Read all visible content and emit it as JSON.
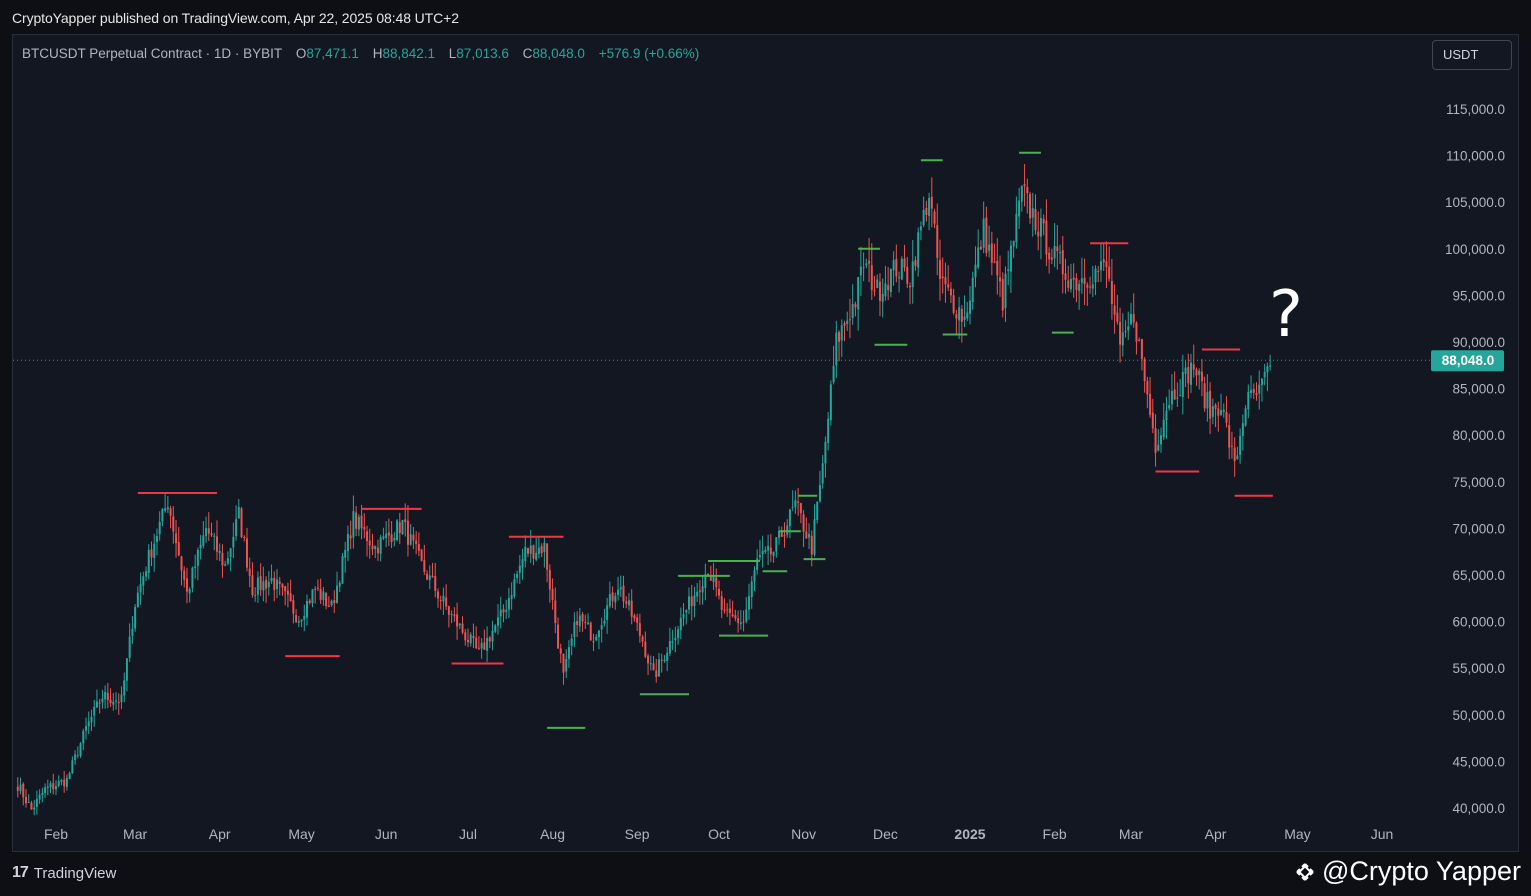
{
  "header": {
    "published": "CryptoYapper published on TradingView.com, Apr 22, 2025 08:48 UTC+2"
  },
  "legend": {
    "symbol": "BTCUSDT Perpetual Contract · 1D · BYBIT",
    "o_label": "O",
    "o_value": "87,471.1",
    "h_label": "H",
    "h_value": "88,842.1",
    "l_label": "L",
    "l_value": "87,013.6",
    "c_label": "C",
    "c_value": "88,048.0",
    "change": "+576.9 (+0.66%)"
  },
  "currency_button": "USDT",
  "price_label": "88,048.0",
  "annotation": "?",
  "footer": {
    "brand": "TradingView",
    "brand_mark": "17",
    "watermark": "@Crypto Yapper"
  },
  "colors": {
    "up": "#26a69a",
    "down": "#ef5350",
    "support_line": "#4caf50",
    "resistance_line": "#f23645",
    "background": "#131722",
    "axis_text": "#b2b5be"
  },
  "chart_data": {
    "type": "candlestick",
    "symbol": "BTCUSDT",
    "interval": "1D",
    "y_ticks": [
      "115,000.0",
      "110,000.0",
      "105,000.0",
      "100,000.0",
      "95,000.0",
      "90,000.0",
      "85,000.0",
      "80,000.0",
      "75,000.0",
      "70,000.0",
      "65,000.0",
      "60,000.0",
      "55,000.0",
      "50,000.0",
      "45,000.0",
      "40,000.0"
    ],
    "ylim": [
      39000,
      118000
    ],
    "x_ticks": [
      "Feb",
      "Mar",
      "Apr",
      "May",
      "Jun",
      "Jul",
      "Aug",
      "Sep",
      "Oct",
      "Nov",
      "Dec",
      "2025",
      "Feb",
      "Mar",
      "Apr",
      "May",
      "Jun"
    ],
    "x_tick_dates": [
      "2024-02-01",
      "2024-03-01",
      "2024-04-01",
      "2024-05-01",
      "2024-06-01",
      "2024-07-01",
      "2024-08-01",
      "2024-09-01",
      "2024-10-01",
      "2024-11-01",
      "2024-12-01",
      "2025-01-01",
      "2025-02-01",
      "2025-03-01",
      "2025-04-01",
      "2025-05-01",
      "2025-06-01"
    ],
    "last_price": 88048.0,
    "close_path": [
      [
        "2024-01-18",
        42500
      ],
      [
        "2024-01-23",
        39800
      ],
      [
        "2024-01-28",
        42000
      ],
      [
        "2024-02-05",
        43000
      ],
      [
        "2024-02-12",
        48500
      ],
      [
        "2024-02-18",
        52000
      ],
      [
        "2024-02-25",
        51500
      ],
      [
        "2024-03-01",
        62000
      ],
      [
        "2024-03-05",
        66000
      ],
      [
        "2024-03-13",
        73000
      ],
      [
        "2024-03-20",
        63000
      ],
      [
        "2024-03-27",
        70000
      ],
      [
        "2024-04-03",
        66000
      ],
      [
        "2024-04-08",
        71500
      ],
      [
        "2024-04-13",
        63500
      ],
      [
        "2024-04-20",
        64500
      ],
      [
        "2024-04-30",
        60500
      ],
      [
        "2024-05-06",
        63500
      ],
      [
        "2024-05-12",
        61500
      ],
      [
        "2024-05-20",
        71000
      ],
      [
        "2024-05-28",
        68000
      ],
      [
        "2024-06-07",
        70500
      ],
      [
        "2024-06-14",
        66000
      ],
      [
        "2024-06-24",
        61000
      ],
      [
        "2024-07-05",
        56500
      ],
      [
        "2024-07-14",
        61000
      ],
      [
        "2024-07-22",
        67500
      ],
      [
        "2024-07-29",
        68000
      ],
      [
        "2024-08-05",
        54000
      ],
      [
        "2024-08-10",
        60500
      ],
      [
        "2024-08-16",
        58500
      ],
      [
        "2024-08-25",
        64000
      ],
      [
        "2024-09-03",
        58000
      ],
      [
        "2024-09-07",
        54000
      ],
      [
        "2024-09-15",
        59000
      ],
      [
        "2024-09-27",
        65800
      ],
      [
        "2024-10-03",
        60500
      ],
      [
        "2024-10-10",
        60000
      ],
      [
        "2024-10-15",
        66500
      ],
      [
        "2024-10-21",
        67500
      ],
      [
        "2024-10-29",
        72500
      ],
      [
        "2024-11-04",
        68000
      ],
      [
        "2024-11-08",
        76500
      ],
      [
        "2024-11-13",
        90000
      ],
      [
        "2024-11-20",
        94500
      ],
      [
        "2024-11-23",
        98500
      ],
      [
        "2024-11-28",
        95500
      ],
      [
        "2024-12-05",
        98000
      ],
      [
        "2024-12-10",
        97000
      ],
      [
        "2024-12-17",
        106000
      ],
      [
        "2024-12-21",
        96500
      ],
      [
        "2024-12-30",
        92500
      ],
      [
        "2025-01-06",
        102000
      ],
      [
        "2025-01-13",
        94500
      ],
      [
        "2025-01-20",
        106000
      ],
      [
        "2025-01-26",
        102500
      ],
      [
        "2025-02-01",
        99000
      ],
      [
        "2025-02-08",
        96500
      ],
      [
        "2025-02-20",
        98000
      ],
      [
        "2025-02-25",
        89000
      ],
      [
        "2025-03-02",
        93000
      ],
      [
        "2025-03-10",
        79000
      ],
      [
        "2025-03-15",
        84000
      ],
      [
        "2025-03-24",
        87500
      ],
      [
        "2025-03-30",
        82500
      ],
      [
        "2025-04-03",
        83500
      ],
      [
        "2025-04-08",
        76500
      ],
      [
        "2025-04-12",
        83500
      ],
      [
        "2025-04-17",
        84500
      ],
      [
        "2025-04-21",
        87471
      ]
    ],
    "support_levels": [
      {
        "start": "2024-09-16",
        "end": "2024-10-05",
        "price": 64900
      },
      {
        "start": "2024-07-30",
        "end": "2024-08-13",
        "price": 48600
      },
      {
        "start": "2024-09-02",
        "end": "2024-09-20",
        "price": 52200
      },
      {
        "start": "2024-09-27",
        "end": "2024-10-16",
        "price": 66500
      },
      {
        "start": "2024-10-01",
        "end": "2024-10-19",
        "price": 58500
      },
      {
        "start": "2024-10-17",
        "end": "2024-10-26",
        "price": 65400
      },
      {
        "start": "2024-10-23",
        "end": "2024-10-31",
        "price": 69700
      },
      {
        "start": "2024-10-30",
        "end": "2024-11-06",
        "price": 73500
      },
      {
        "start": "2024-11-01",
        "end": "2024-11-09",
        "price": 66700
      },
      {
        "start": "2024-11-21",
        "end": "2024-11-29",
        "price": 100000
      },
      {
        "start": "2024-11-27",
        "end": "2024-12-09",
        "price": 89700
      },
      {
        "start": "2024-12-14",
        "end": "2024-12-22",
        "price": 109500
      },
      {
        "start": "2024-12-22",
        "end": "2024-12-31",
        "price": 90800
      },
      {
        "start": "2025-01-19",
        "end": "2025-01-27",
        "price": 110300
      },
      {
        "start": "2025-01-31",
        "end": "2025-02-08",
        "price": 91000
      }
    ],
    "resistance_levels": [
      {
        "start": "2024-03-02",
        "end": "2024-03-31",
        "price": 73800
      },
      {
        "start": "2024-04-25",
        "end": "2024-05-15",
        "price": 56300
      },
      {
        "start": "2024-05-23",
        "end": "2024-06-14",
        "price": 72100
      },
      {
        "start": "2024-06-25",
        "end": "2024-07-14",
        "price": 55500
      },
      {
        "start": "2024-07-16",
        "end": "2024-08-05",
        "price": 69100
      },
      {
        "start": "2025-02-14",
        "end": "2025-02-28",
        "price": 100600
      },
      {
        "start": "2025-03-10",
        "end": "2025-03-26",
        "price": 76100
      },
      {
        "start": "2025-03-27",
        "end": "2025-04-10",
        "price": 89200
      },
      {
        "start": "2025-04-08",
        "end": "2025-04-22",
        "price": 73500
      }
    ]
  }
}
